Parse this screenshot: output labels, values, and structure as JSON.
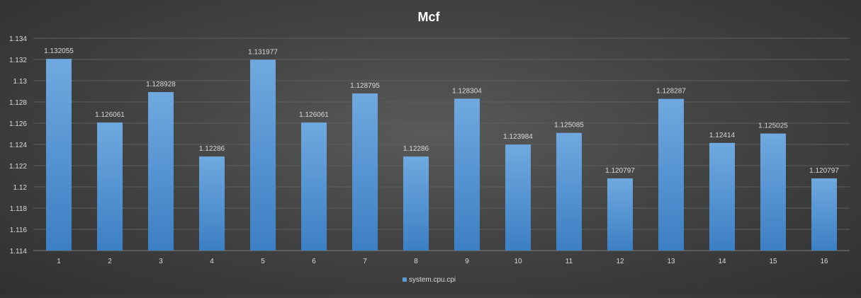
{
  "chart_data": {
    "type": "bar",
    "title": "Mcf",
    "xlabel": "",
    "ylabel": "",
    "categories": [
      "1",
      "2",
      "3",
      "4",
      "5",
      "6",
      "7",
      "8",
      "9",
      "10",
      "11",
      "12",
      "13",
      "14",
      "15",
      "16"
    ],
    "series": [
      {
        "name": "system.cpu.cpi",
        "values": [
          1.132055,
          1.126061,
          1.128928,
          1.12286,
          1.131977,
          1.126061,
          1.128795,
          1.12286,
          1.128304,
          1.123984,
          1.125085,
          1.120797,
          1.128287,
          1.12414,
          1.125025,
          1.120797
        ],
        "labels": [
          "1.132055",
          "1.126061",
          "1.128928",
          "1.12286",
          "1.131977",
          "1.126061",
          "1.128795",
          "1.12286",
          "1.128304",
          "1.123984",
          "1.125085",
          "1.120797",
          "1.128287",
          "1.12414",
          "1.125025",
          "1.120797"
        ],
        "color": "#5b9bd5"
      }
    ],
    "ylim": [
      1.114,
      1.134
    ],
    "yticks": [
      "1.114",
      "1.116",
      "1.118",
      "1.12",
      "1.122",
      "1.124",
      "1.126",
      "1.128",
      "1.13",
      "1.132",
      "1.134"
    ],
    "grid": true,
    "legend_position": "bottom",
    "colors": {
      "gridline": "#5e5e5e",
      "axis_text": "#d9d9d9",
      "title_text": "#ffffff"
    }
  }
}
